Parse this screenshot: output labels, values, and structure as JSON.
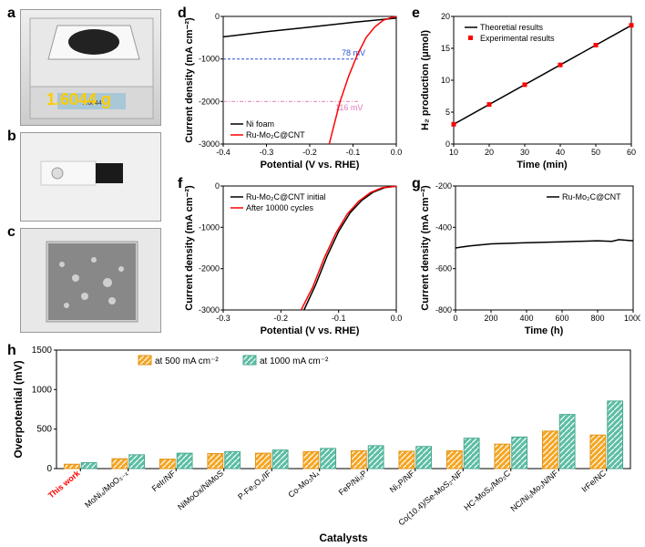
{
  "panels": {
    "a": {
      "label": "a",
      "weight_text": "1.6044 g",
      "weight_color": "#ffcc00"
    },
    "b": {
      "label": "b"
    },
    "c": {
      "label": "c"
    },
    "d": {
      "label": "d",
      "type": "line",
      "xlabel": "Potential (V vs. RHE)",
      "ylabel": "Current density (mA cm⁻²)",
      "xlim": [
        -0.4,
        0.0
      ],
      "xticks": [
        -0.4,
        -0.3,
        -0.2,
        -0.1,
        0.0
      ],
      "ylim": [
        -3000,
        0
      ],
      "yticks": [
        -3000,
        -2000,
        -1000,
        0
      ],
      "legend": [
        {
          "label": "Ni foam",
          "color": "#000000"
        },
        {
          "label": "Ru-Mo₂C@CNT",
          "color": "#ff0000"
        }
      ],
      "annotations": [
        {
          "text": "78 mV",
          "color": "#2a4fd8",
          "y": -1000
        },
        {
          "text": "116 mV",
          "color": "#e07ab8",
          "y": -2000
        }
      ],
      "series": {
        "nifoam": {
          "color": "#000000",
          "points": [
            [
              -0.4,
              -480
            ],
            [
              -0.3,
              -360
            ],
            [
              -0.2,
              -250
            ],
            [
              -0.1,
              -140
            ],
            [
              0.0,
              -40
            ]
          ]
        },
        "rumo2c": {
          "color": "#ff0000",
          "points": [
            [
              -0.155,
              -3000
            ],
            [
              -0.145,
              -2600
            ],
            [
              -0.13,
              -2000
            ],
            [
              -0.11,
              -1400
            ],
            [
              -0.09,
              -900
            ],
            [
              -0.07,
              -500
            ],
            [
              -0.05,
              -250
            ],
            [
              -0.03,
              -90
            ],
            [
              -0.01,
              -20
            ],
            [
              0.0,
              -5
            ]
          ]
        }
      },
      "label_fontsize": 11,
      "tick_fontsize": 9,
      "background_color": "#ffffff"
    },
    "e": {
      "label": "e",
      "type": "scatter+line",
      "xlabel": "Time (min)",
      "ylabel": "H₂ production (μmol)",
      "xlim": [
        10,
        60
      ],
      "xticks": [
        10,
        20,
        30,
        40,
        50,
        60
      ],
      "ylim": [
        0,
        20
      ],
      "yticks": [
        0,
        5,
        10,
        15,
        20
      ],
      "legend": [
        {
          "label": "Theoretial results",
          "color": "#000000",
          "type": "line"
        },
        {
          "label": "Experimental results",
          "color": "#ff0000",
          "type": "marker"
        }
      ],
      "line": {
        "color": "#000000",
        "points": [
          [
            10,
            3.1
          ],
          [
            60,
            18.6
          ]
        ]
      },
      "markers": {
        "color": "#ff0000",
        "shape": "square",
        "size": 5,
        "points": [
          [
            10,
            3.1
          ],
          [
            20,
            6.2
          ],
          [
            30,
            9.3
          ],
          [
            40,
            12.4
          ],
          [
            50,
            15.5
          ],
          [
            60,
            18.6
          ]
        ]
      }
    },
    "f": {
      "label": "f",
      "type": "line",
      "xlabel": "Potential (V vs. RHE)",
      "ylabel": "Current density (mA cm⁻²)",
      "xlim": [
        -0.3,
        0.0
      ],
      "xticks": [
        -0.3,
        -0.2,
        -0.1,
        0.0
      ],
      "ylim": [
        -3000,
        0
      ],
      "yticks": [
        -3000,
        -2000,
        -1000,
        0
      ],
      "legend": [
        {
          "label": "Ru-Mo₂C@CNT initial",
          "color": "#000000"
        },
        {
          "label": "After 10000 cycles",
          "color": "#ff0000"
        }
      ],
      "series": {
        "initial": {
          "color": "#000000",
          "points": [
            [
              -0.16,
              -3000
            ],
            [
              -0.14,
              -2400
            ],
            [
              -0.12,
              -1700
            ],
            [
              -0.1,
              -1100
            ],
            [
              -0.08,
              -650
            ],
            [
              -0.06,
              -350
            ],
            [
              -0.04,
              -150
            ],
            [
              -0.02,
              -40
            ],
            [
              0.0,
              -5
            ]
          ]
        },
        "after": {
          "color": "#ff0000",
          "points": [
            [
              -0.165,
              -3000
            ],
            [
              -0.145,
              -2450
            ],
            [
              -0.125,
              -1750
            ],
            [
              -0.105,
              -1150
            ],
            [
              -0.085,
              -680
            ],
            [
              -0.065,
              -370
            ],
            [
              -0.045,
              -160
            ],
            [
              -0.025,
              -45
            ],
            [
              0.0,
              -5
            ]
          ]
        }
      }
    },
    "g": {
      "label": "g",
      "type": "line",
      "xlabel": "Time (h)",
      "ylabel": "Current density (mA cm⁻²)",
      "xlim": [
        0,
        1000
      ],
      "xticks": [
        0,
        200,
        400,
        600,
        800,
        1000
      ],
      "ylim": [
        -800,
        -200
      ],
      "yticks": [
        -800,
        -600,
        -400,
        -200
      ],
      "legend": [
        {
          "label": "Ru-Mo₂C@CNT",
          "color": "#000000"
        }
      ],
      "line": {
        "color": "#000000",
        "points": [
          [
            0,
            -500
          ],
          [
            80,
            -490
          ],
          [
            200,
            -480
          ],
          [
            400,
            -475
          ],
          [
            600,
            -470
          ],
          [
            800,
            -465
          ],
          [
            880,
            -468
          ],
          [
            920,
            -460
          ],
          [
            1000,
            -465
          ]
        ]
      }
    },
    "h": {
      "label": "h",
      "type": "bar",
      "xlabel": "Catalysts",
      "ylabel": "Overpotential (mV)",
      "ylim": [
        0,
        1500
      ],
      "yticks": [
        0,
        500,
        1000,
        1500
      ],
      "legend": [
        {
          "label": "at 500 mA cm⁻²",
          "color": "#f5a623"
        },
        {
          "label": "at 1000 mA cm⁻²",
          "color": "#5cbea5"
        }
      ],
      "categories": [
        "This work",
        "MoNi₄/MoO₃₋ₓ",
        "FeIr/NF",
        "NiMoOx/NiMoS",
        "P-Fe₃O₄/IF",
        "Co-Mo₃N₄",
        "FeP/Ni₂P",
        "Ni₂P/NF",
        "Co(10.4)/Se-MoS₂-NF",
        "HC-MoS₂/Mo₂C",
        "NC/Ni₃Mo₃N/NF",
        "IrFe/NC"
      ],
      "values_500": [
        55,
        125,
        120,
        190,
        195,
        215,
        225,
        220,
        225,
        310,
        475,
        425
      ],
      "values_1000": [
        75,
        175,
        195,
        215,
        235,
        255,
        290,
        280,
        385,
        400,
        685,
        855
      ],
      "bar_colors": [
        "#f5a623",
        "#5cbea5"
      ],
      "highlight_label": "This work",
      "highlight_color": "#ff0000",
      "cat_fontsize": 9,
      "label_fontsize": 12
    }
  }
}
